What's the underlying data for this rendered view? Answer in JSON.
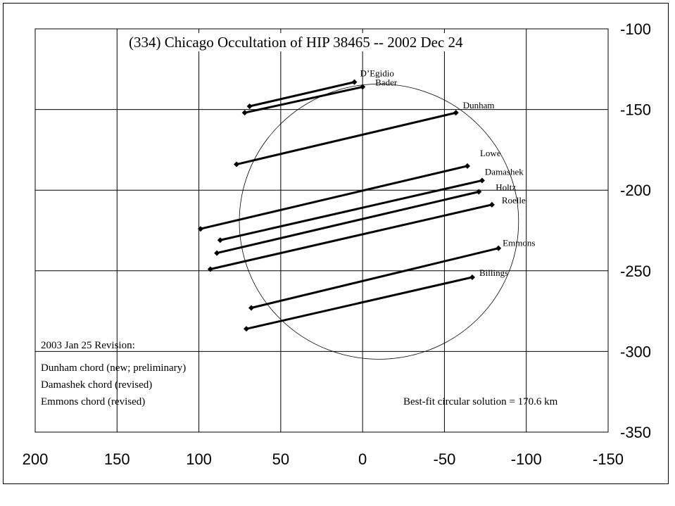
{
  "chart_data": {
    "type": "line",
    "title": "(334) Chicago Occultation of HIP 38465 -- 2002 Dec 24",
    "xlabel": "",
    "ylabel": "",
    "xlim": [
      200,
      -150
    ],
    "ylim": [
      -100,
      -350
    ],
    "x_ticks": [
      "200",
      "150",
      "100",
      "50",
      "0",
      "-50",
      "-100",
      "-150"
    ],
    "y_ticks": [
      "-100",
      "-150",
      "-200",
      "-250",
      "-300",
      "-350"
    ],
    "grid": true,
    "legend": "none",
    "circle": {
      "center": [
        -10,
        -219.5
      ],
      "radius": 85.3
    },
    "series": [
      {
        "name": "D’Egidio",
        "x": [
          69,
          5
        ],
        "y": [
          -148,
          -133
        ]
      },
      {
        "name": "Bader",
        "x": [
          72,
          0
        ],
        "y": [
          -152,
          -136
        ]
      },
      {
        "name": "Dunham",
        "x": [
          77,
          -57
        ],
        "y": [
          -184,
          -152
        ]
      },
      {
        "name": "Lowe",
        "x": [
          99,
          -64
        ],
        "y": [
          -224,
          -185
        ]
      },
      {
        "name": "Damashek",
        "x": [
          87,
          -73
        ],
        "y": [
          -231,
          -194
        ]
      },
      {
        "name": "Holtz",
        "x": [
          89,
          -71
        ],
        "y": [
          -239,
          -201
        ]
      },
      {
        "name": "Roelle",
        "x": [
          93,
          -79
        ],
        "y": [
          -249,
          -209
        ]
      },
      {
        "name": "Emmons",
        "x": [
          68,
          -83
        ],
        "y": [
          -273,
          -236
        ]
      },
      {
        "name": "Billings",
        "x": [
          71,
          -67
        ],
        "y": [
          -286,
          -254
        ]
      }
    ]
  },
  "notes": {
    "revision_title": "2003 Jan 25 Revision:",
    "lines": [
      "Dunham chord (new; preliminary)",
      "Damashek chord (revised)",
      "Emmons chord (revised)"
    ],
    "solution": "Best-fit circular solution = 170.6 km"
  }
}
